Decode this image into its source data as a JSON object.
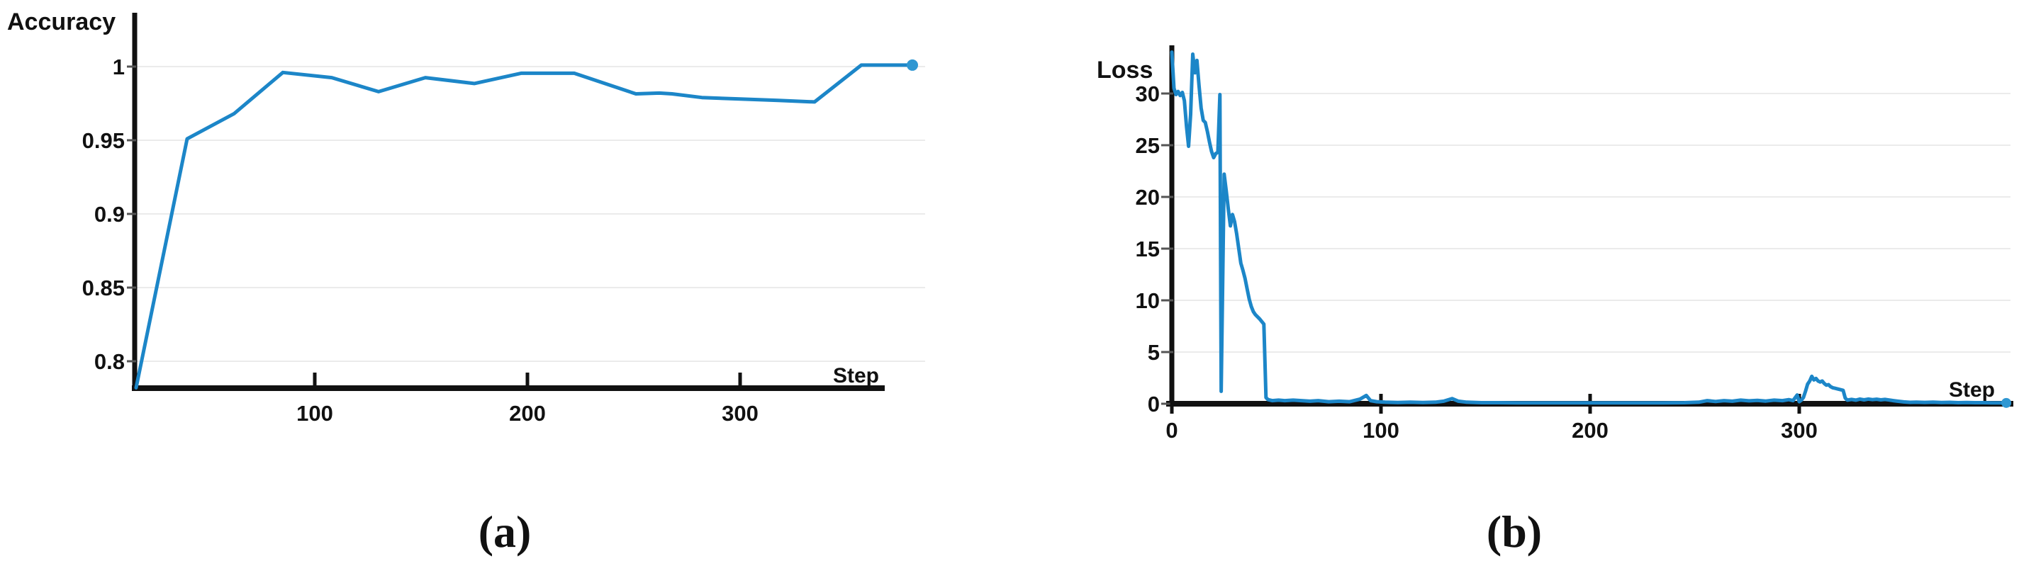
{
  "figure": {
    "background": "#ffffff",
    "line_color": "#1c86c8",
    "endpoint_dot_color": "#2f97d2",
    "axis_color": "#111111",
    "gridline_color": "#ebebeb"
  },
  "chart_data": [
    {
      "type": "line",
      "title": "Accuracy",
      "xlabel": "Step",
      "caption": "(a)",
      "legend": "none",
      "grid": "horizontal",
      "xticks": [
        100,
        200,
        300
      ],
      "yticks": [
        1,
        0.95,
        0.9,
        0.85,
        0.8
      ],
      "xlim": [
        10,
        390
      ],
      "ylim": [
        0.78,
        1.035
      ],
      "points": [
        [
          16,
          0.782
        ],
        [
          40,
          0.951
        ],
        [
          62,
          0.968
        ],
        [
          85,
          0.996
        ],
        [
          108,
          0.9925
        ],
        [
          130,
          0.983
        ],
        [
          152,
          0.9925
        ],
        [
          175,
          0.9885
        ],
        [
          197,
          0.9955
        ],
        [
          222,
          0.9955
        ],
        [
          251,
          0.9815
        ],
        [
          262,
          0.982
        ],
        [
          268,
          0.9815
        ],
        [
          282,
          0.979
        ],
        [
          300,
          0.978
        ],
        [
          318,
          0.977
        ],
        [
          335,
          0.976
        ],
        [
          357,
          1.001
        ],
        [
          381,
          1.001
        ]
      ]
    },
    {
      "type": "line",
      "title": "Loss",
      "xlabel": "Step",
      "caption": "(b)",
      "legend": "none",
      "grid": "horizontal",
      "xticks": [
        0,
        100,
        200,
        300
      ],
      "yticks": [
        30,
        25,
        20,
        15,
        10,
        5,
        0
      ],
      "xlim": [
        0,
        400
      ],
      "ylim": [
        0,
        34.5
      ],
      "points": [
        [
          0,
          34
        ],
        [
          1,
          30.5
        ],
        [
          2,
          29.9
        ],
        [
          3,
          30.2
        ],
        [
          4,
          29.8
        ],
        [
          5,
          30.1
        ],
        [
          6,
          29.3
        ],
        [
          7,
          26.8
        ],
        [
          8,
          24.9
        ],
        [
          9,
          28
        ],
        [
          10,
          33.8
        ],
        [
          11,
          32
        ],
        [
          12,
          33.2
        ],
        [
          13,
          30.8
        ],
        [
          14,
          28.6
        ],
        [
          15,
          27.4
        ],
        [
          16,
          27.2
        ],
        [
          17,
          26.3
        ],
        [
          18,
          25.3
        ],
        [
          19,
          24.4
        ],
        [
          20,
          23.8
        ],
        [
          21,
          24.2
        ],
        [
          22,
          24.3
        ],
        [
          23,
          29.9
        ],
        [
          23.6,
          1.2
        ],
        [
          25,
          22.2
        ],
        [
          26,
          20.6
        ],
        [
          27,
          18.8
        ],
        [
          28,
          17.2
        ],
        [
          29,
          18.3
        ],
        [
          30,
          17.6
        ],
        [
          31,
          16.4
        ],
        [
          32,
          15
        ],
        [
          33,
          13.6
        ],
        [
          34,
          12.9
        ],
        [
          35,
          12.1
        ],
        [
          36,
          11.1
        ],
        [
          37,
          10.1
        ],
        [
          38,
          9.4
        ],
        [
          39,
          8.9
        ],
        [
          40,
          8.6
        ],
        [
          42,
          8.2
        ],
        [
          44,
          7.7
        ],
        [
          45,
          0.6
        ],
        [
          46,
          0.4
        ],
        [
          48,
          0.3
        ],
        [
          51,
          0.35
        ],
        [
          54,
          0.3
        ],
        [
          58,
          0.35
        ],
        [
          62,
          0.3
        ],
        [
          66,
          0.25
        ],
        [
          70,
          0.3
        ],
        [
          75,
          0.2
        ],
        [
          80,
          0.25
        ],
        [
          85,
          0.2
        ],
        [
          90,
          0.45
        ],
        [
          93,
          0.8
        ],
        [
          95,
          0.3
        ],
        [
          98,
          0.2
        ],
        [
          102,
          0.15
        ],
        [
          108,
          0.12
        ],
        [
          114,
          0.15
        ],
        [
          120,
          0.12
        ],
        [
          126,
          0.15
        ],
        [
          130,
          0.25
        ],
        [
          134,
          0.5
        ],
        [
          137,
          0.25
        ],
        [
          141,
          0.15
        ],
        [
          148,
          0.1
        ],
        [
          156,
          0.1
        ],
        [
          165,
          0.08
        ],
        [
          175,
          0.08
        ],
        [
          185,
          0.08
        ],
        [
          195,
          0.08
        ],
        [
          205,
          0.08
        ],
        [
          215,
          0.08
        ],
        [
          225,
          0.08
        ],
        [
          235,
          0.08
        ],
        [
          245,
          0.1
        ],
        [
          252,
          0.15
        ],
        [
          256,
          0.3
        ],
        [
          260,
          0.22
        ],
        [
          264,
          0.3
        ],
        [
          268,
          0.25
        ],
        [
          272,
          0.35
        ],
        [
          276,
          0.28
        ],
        [
          280,
          0.32
        ],
        [
          284,
          0.26
        ],
        [
          288,
          0.35
        ],
        [
          292,
          0.3
        ],
        [
          295,
          0.4
        ],
        [
          297,
          0.3
        ],
        [
          299,
          0.85
        ],
        [
          300,
          0.2
        ],
        [
          301,
          0.35
        ],
        [
          302,
          0.6
        ],
        [
          303,
          1.2
        ],
        [
          304,
          1.9
        ],
        [
          305,
          2.2
        ],
        [
          306,
          2.65
        ],
        [
          307,
          2.3
        ],
        [
          308,
          2.45
        ],
        [
          309,
          2.2
        ],
        [
          310,
          2.1
        ],
        [
          311,
          2.2
        ],
        [
          312,
          1.95
        ],
        [
          313,
          1.8
        ],
        [
          314,
          1.85
        ],
        [
          315,
          1.65
        ],
        [
          316,
          1.55
        ],
        [
          317,
          1.5
        ],
        [
          318,
          1.45
        ],
        [
          319,
          1.4
        ],
        [
          320,
          1.35
        ],
        [
          321,
          1.3
        ],
        [
          322,
          0.55
        ],
        [
          323,
          0.35
        ],
        [
          325,
          0.42
        ],
        [
          327,
          0.35
        ],
        [
          329,
          0.45
        ],
        [
          331,
          0.38
        ],
        [
          333,
          0.45
        ],
        [
          335,
          0.4
        ],
        [
          337,
          0.44
        ],
        [
          339,
          0.38
        ],
        [
          341,
          0.42
        ],
        [
          343,
          0.36
        ],
        [
          345,
          0.3
        ],
        [
          347,
          0.25
        ],
        [
          350,
          0.18
        ],
        [
          353,
          0.14
        ],
        [
          356,
          0.16
        ],
        [
          360,
          0.13
        ],
        [
          364,
          0.16
        ],
        [
          368,
          0.12
        ],
        [
          372,
          0.14
        ],
        [
          376,
          0.1
        ],
        [
          380,
          0.12
        ],
        [
          384,
          0.1
        ],
        [
          388,
          0.1
        ],
        [
          392,
          0.09
        ],
        [
          396,
          0.08
        ],
        [
          399,
          0.08
        ]
      ]
    }
  ]
}
